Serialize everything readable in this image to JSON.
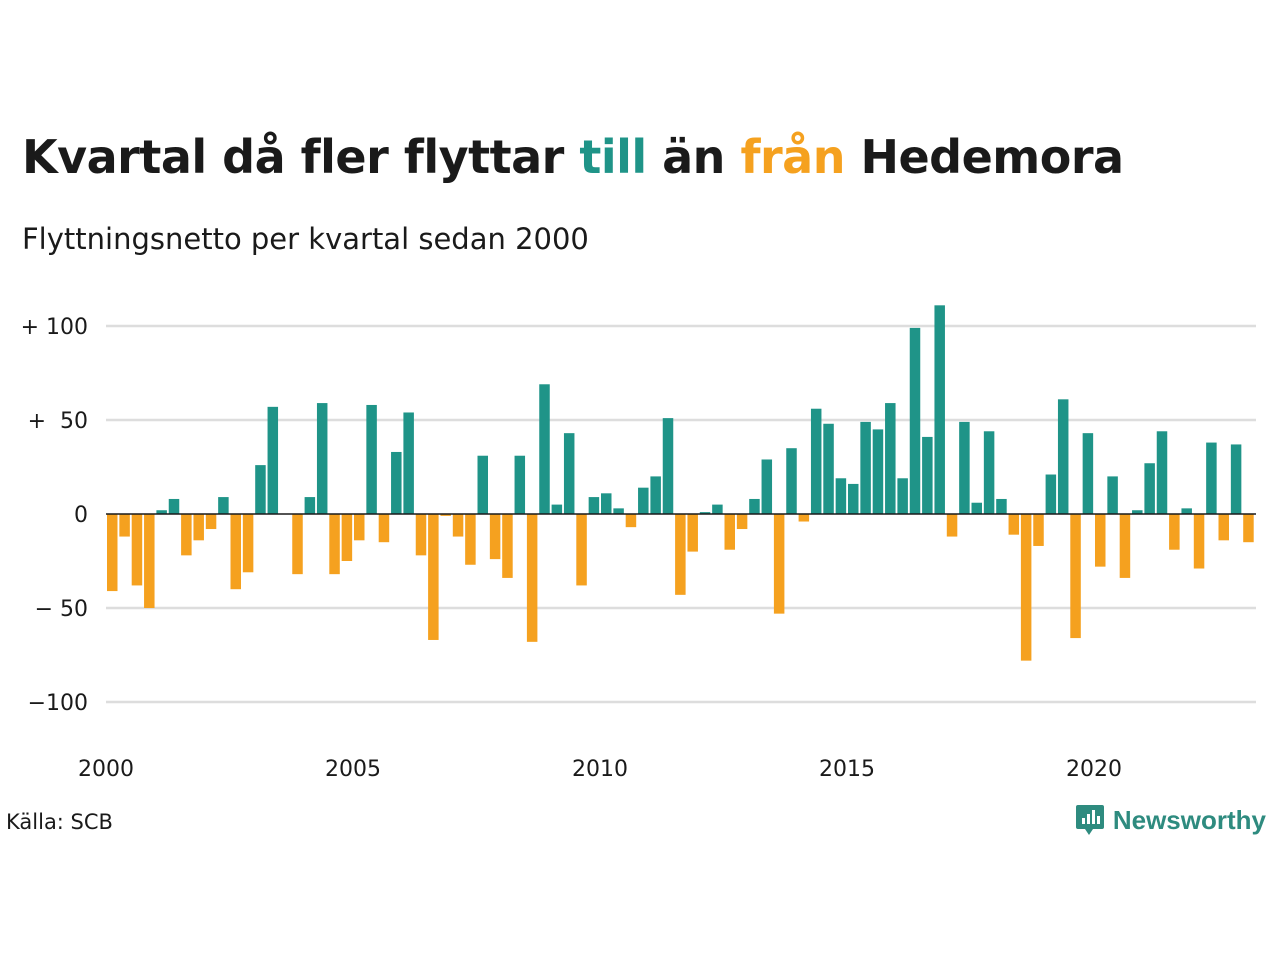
{
  "header": {
    "title_part1": "Kvartal då fler flyttar ",
    "title_till": "till",
    "title_part2": " än ",
    "title_fran": "från",
    "title_part3": " Hedemora",
    "subtitle": "Flyttningsnetto per kvartal sedan 2000"
  },
  "footer": {
    "source": "Källa: SCB",
    "brand": "Newsworthy"
  },
  "colors": {
    "positive": "#1f9488",
    "negative": "#f5a11f",
    "text": "#1a1a1a",
    "grid": "#dddddd",
    "brand": "#2e8b7f"
  },
  "chart_data": {
    "type": "bar",
    "title": "Kvartal då fler flyttar till än från Hedemora",
    "subtitle": "Flyttningsnetto per kvartal sedan 2000",
    "x_start": "2000 Q1",
    "x_ticks": [
      {
        "label": "2000",
        "year": 2000
      },
      {
        "label": "2005",
        "year": 2005
      },
      {
        "label": "2010",
        "year": 2010
      },
      {
        "label": "2015",
        "year": 2015
      },
      {
        "label": "2020",
        "year": 2020
      }
    ],
    "y_ticks": [
      {
        "label": "+ 100",
        "value": 100
      },
      {
        "label": "+  50",
        "value": 50
      },
      {
        "label": "0",
        "value": 0
      },
      {
        "label": "− 50",
        "value": -50
      },
      {
        "label": "−100",
        "value": -100
      }
    ],
    "ylim": [
      -120,
      115
    ],
    "grid": true,
    "values": [
      -41,
      -12,
      -38,
      -50,
      2,
      8,
      -22,
      -14,
      -8,
      9,
      -40,
      -31,
      26,
      57,
      0,
      -32,
      9,
      59,
      -32,
      -25,
      -14,
      58,
      -15,
      33,
      54,
      -22,
      -67,
      -1,
      -12,
      -27,
      31,
      -24,
      -34,
      31,
      -68,
      69,
      5,
      43,
      -38,
      9,
      11,
      3,
      -7,
      14,
      20,
      51,
      -43,
      -20,
      1,
      5,
      -19,
      -8,
      8,
      29,
      -53,
      35,
      -4,
      56,
      48,
      19,
      16,
      49,
      45,
      59,
      19,
      99,
      41,
      111,
      -12,
      49,
      6,
      44,
      8,
      -11,
      -78,
      -17,
      21,
      61,
      -66,
      43,
      -28,
      20,
      -34,
      2,
      27,
      44,
      -19,
      3,
      -29,
      38,
      -14,
      37,
      -15
    ]
  }
}
